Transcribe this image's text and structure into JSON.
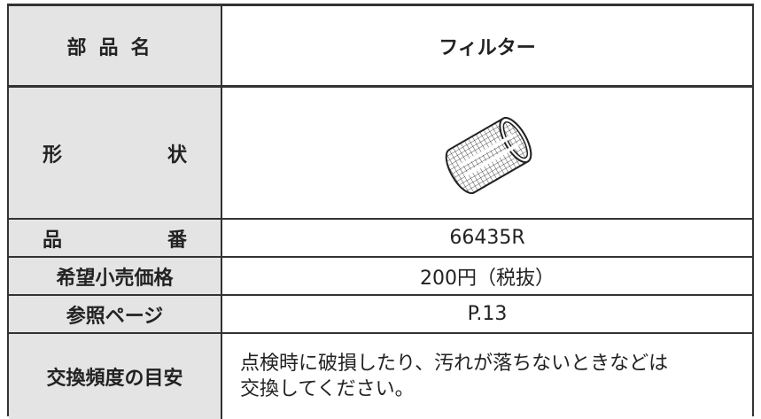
{
  "table": {
    "header": [
      "部品名",
      "フィルター"
    ],
    "rows": [
      [
        "形状"
      ],
      [
        "品番",
        "66435R"
      ],
      [
        "希望小売価格",
        "200円（税抜）"
      ],
      [
        "参照ページ",
        "P.13"
      ],
      [
        "交換頻度の目安",
        [
          "点検時に破損したり、汚れが落ちないときなどは",
          "交換してください。"
        ]
      ]
    ]
  }
}
